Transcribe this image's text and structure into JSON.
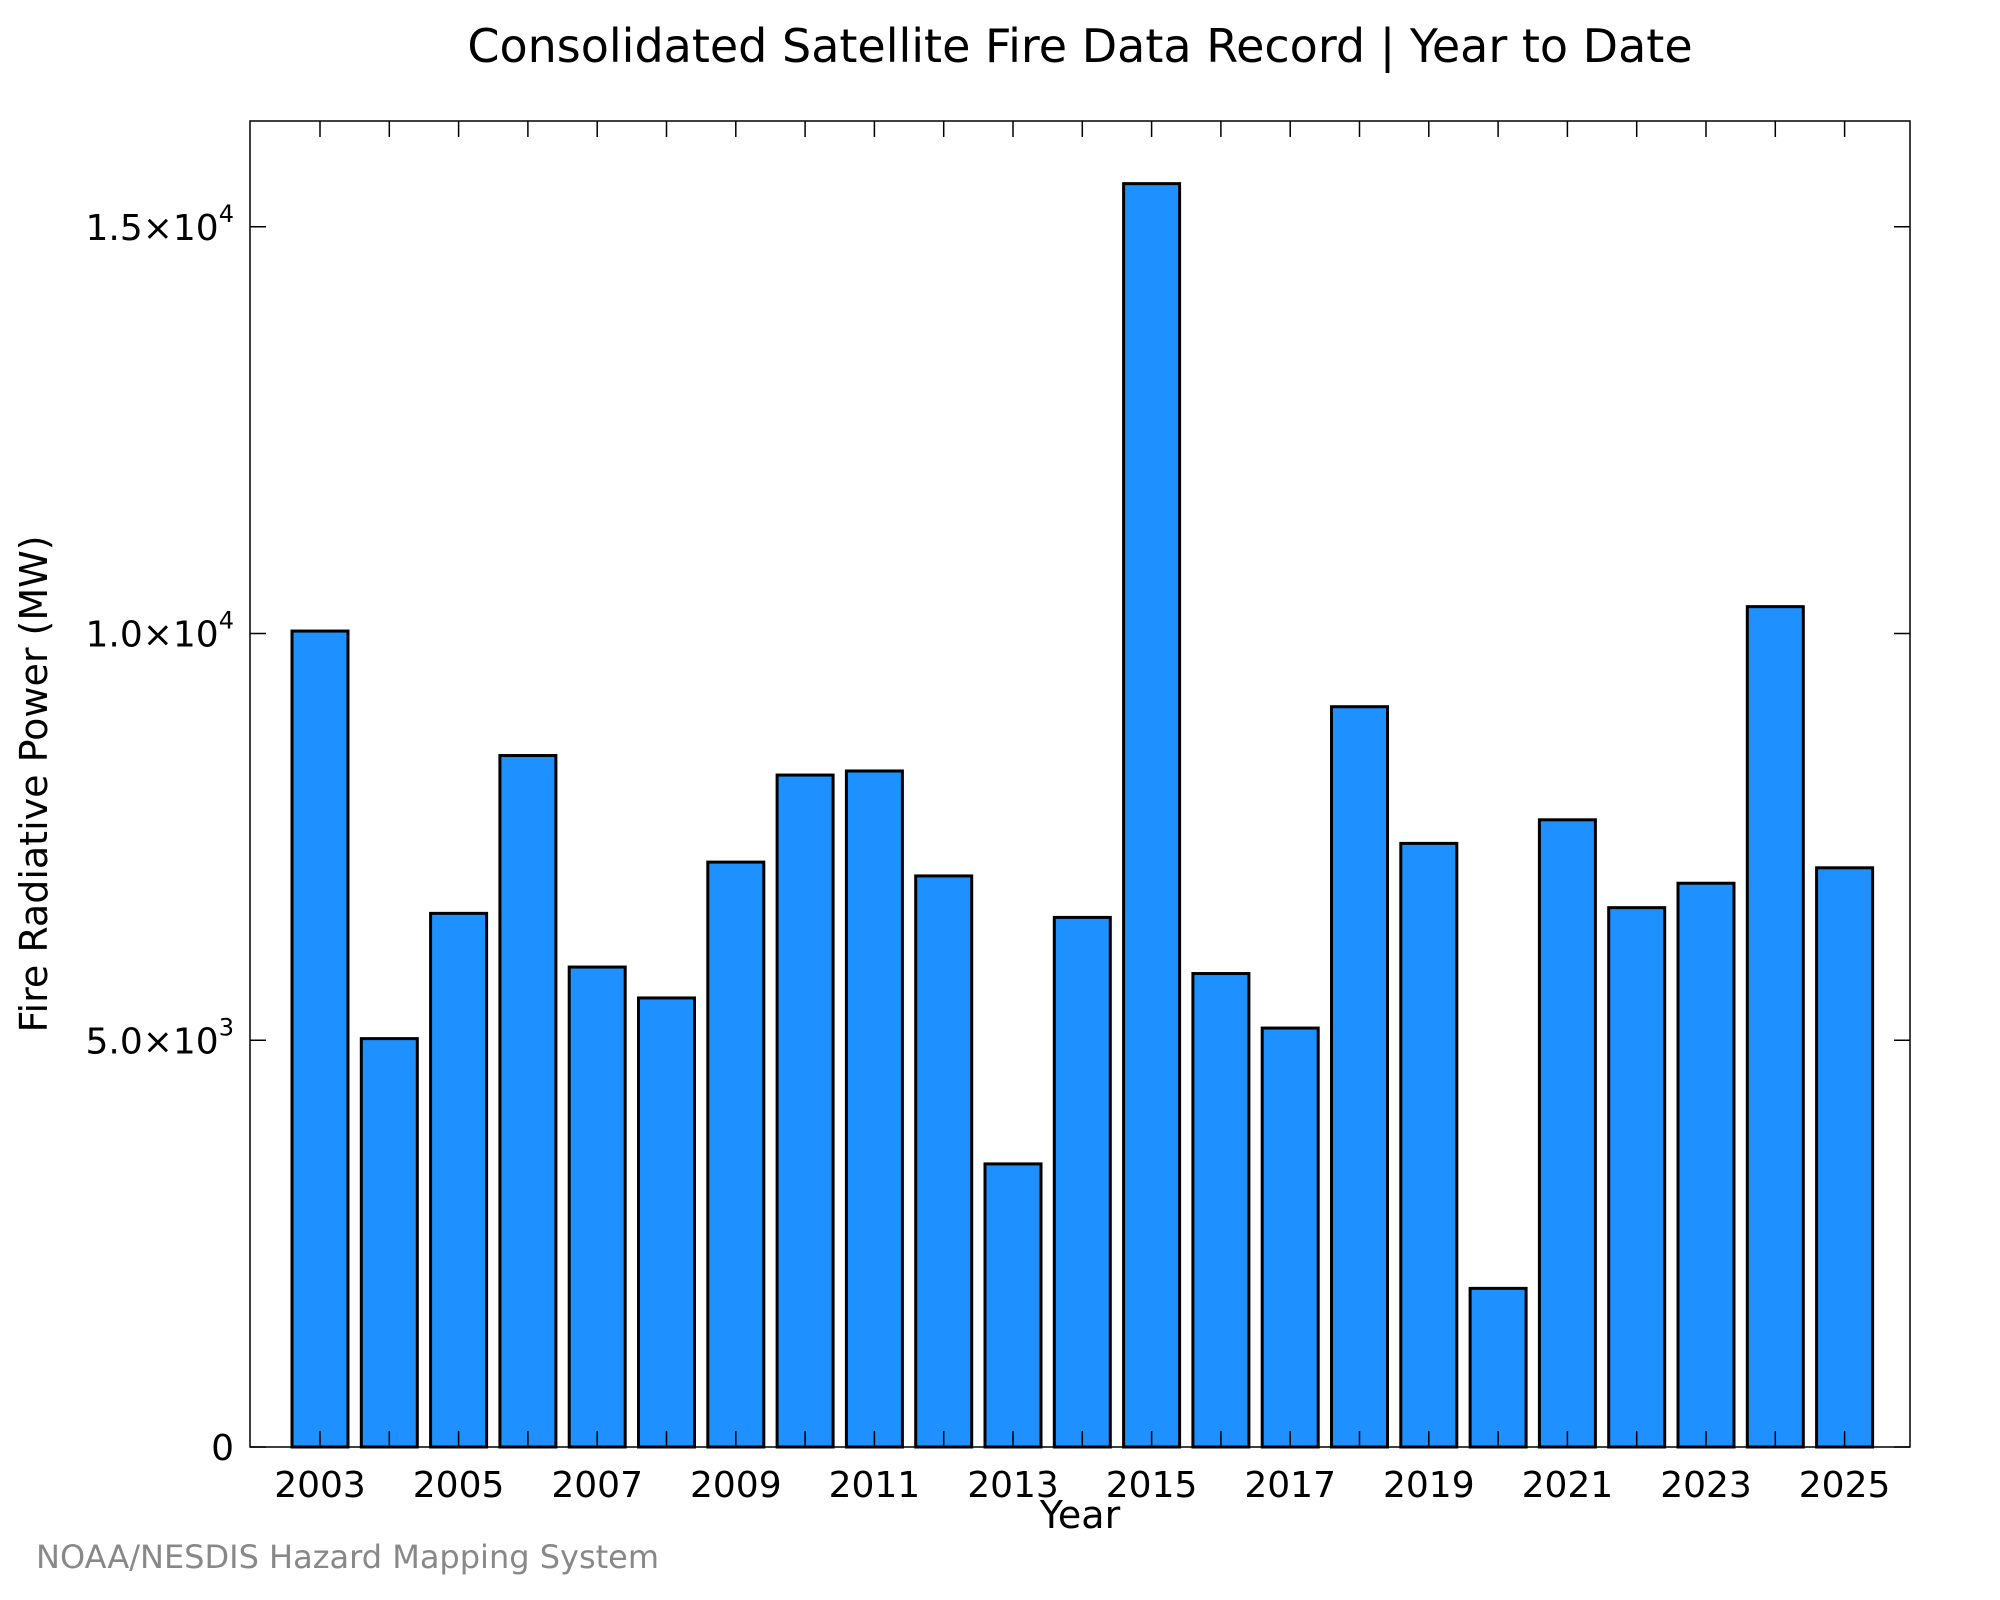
{
  "chart_data": {
    "type": "bar",
    "title": "Consolidated Satellite Fire Data Record | Year to Date",
    "xlabel": "Year",
    "ylabel": "Fire Radiative Power (MW)",
    "categories": [
      "2003",
      "2004",
      "2005",
      "2006",
      "2007",
      "2008",
      "2009",
      "2010",
      "2011",
      "2012",
      "2013",
      "2014",
      "2015",
      "2016",
      "2017",
      "2018",
      "2019",
      "2020",
      "2021",
      "2022",
      "2023",
      "2024",
      "2025"
    ],
    "values": [
      10030,
      5020,
      6560,
      8500,
      5900,
      5520,
      7190,
      8260,
      8310,
      7020,
      3480,
      6510,
      15530,
      5820,
      5150,
      9100,
      7420,
      1950,
      7710,
      6630,
      6930,
      10330,
      7120
    ],
    "xticks": [
      "2003",
      "2005",
      "2007",
      "2009",
      "2011",
      "2013",
      "2015",
      "2017",
      "2019",
      "2021",
      "2023",
      "2025"
    ],
    "yticks": [
      {
        "value": 0,
        "mantissa": "0",
        "exp": ""
      },
      {
        "value": 5000,
        "mantissa": "5.0×10",
        "exp": "3"
      },
      {
        "value": 10000,
        "mantissa": "1.0×10",
        "exp": "4"
      },
      {
        "value": 15000,
        "mantissa": "1.5×10",
        "exp": "4"
      }
    ],
    "ylim": [
      0,
      16300
    ],
    "grid": false,
    "legend": "none",
    "bar_color": "#1e90ff",
    "bar_edge_color": "#000000"
  },
  "credit": "NOAA/NESDIS Hazard Mapping System"
}
